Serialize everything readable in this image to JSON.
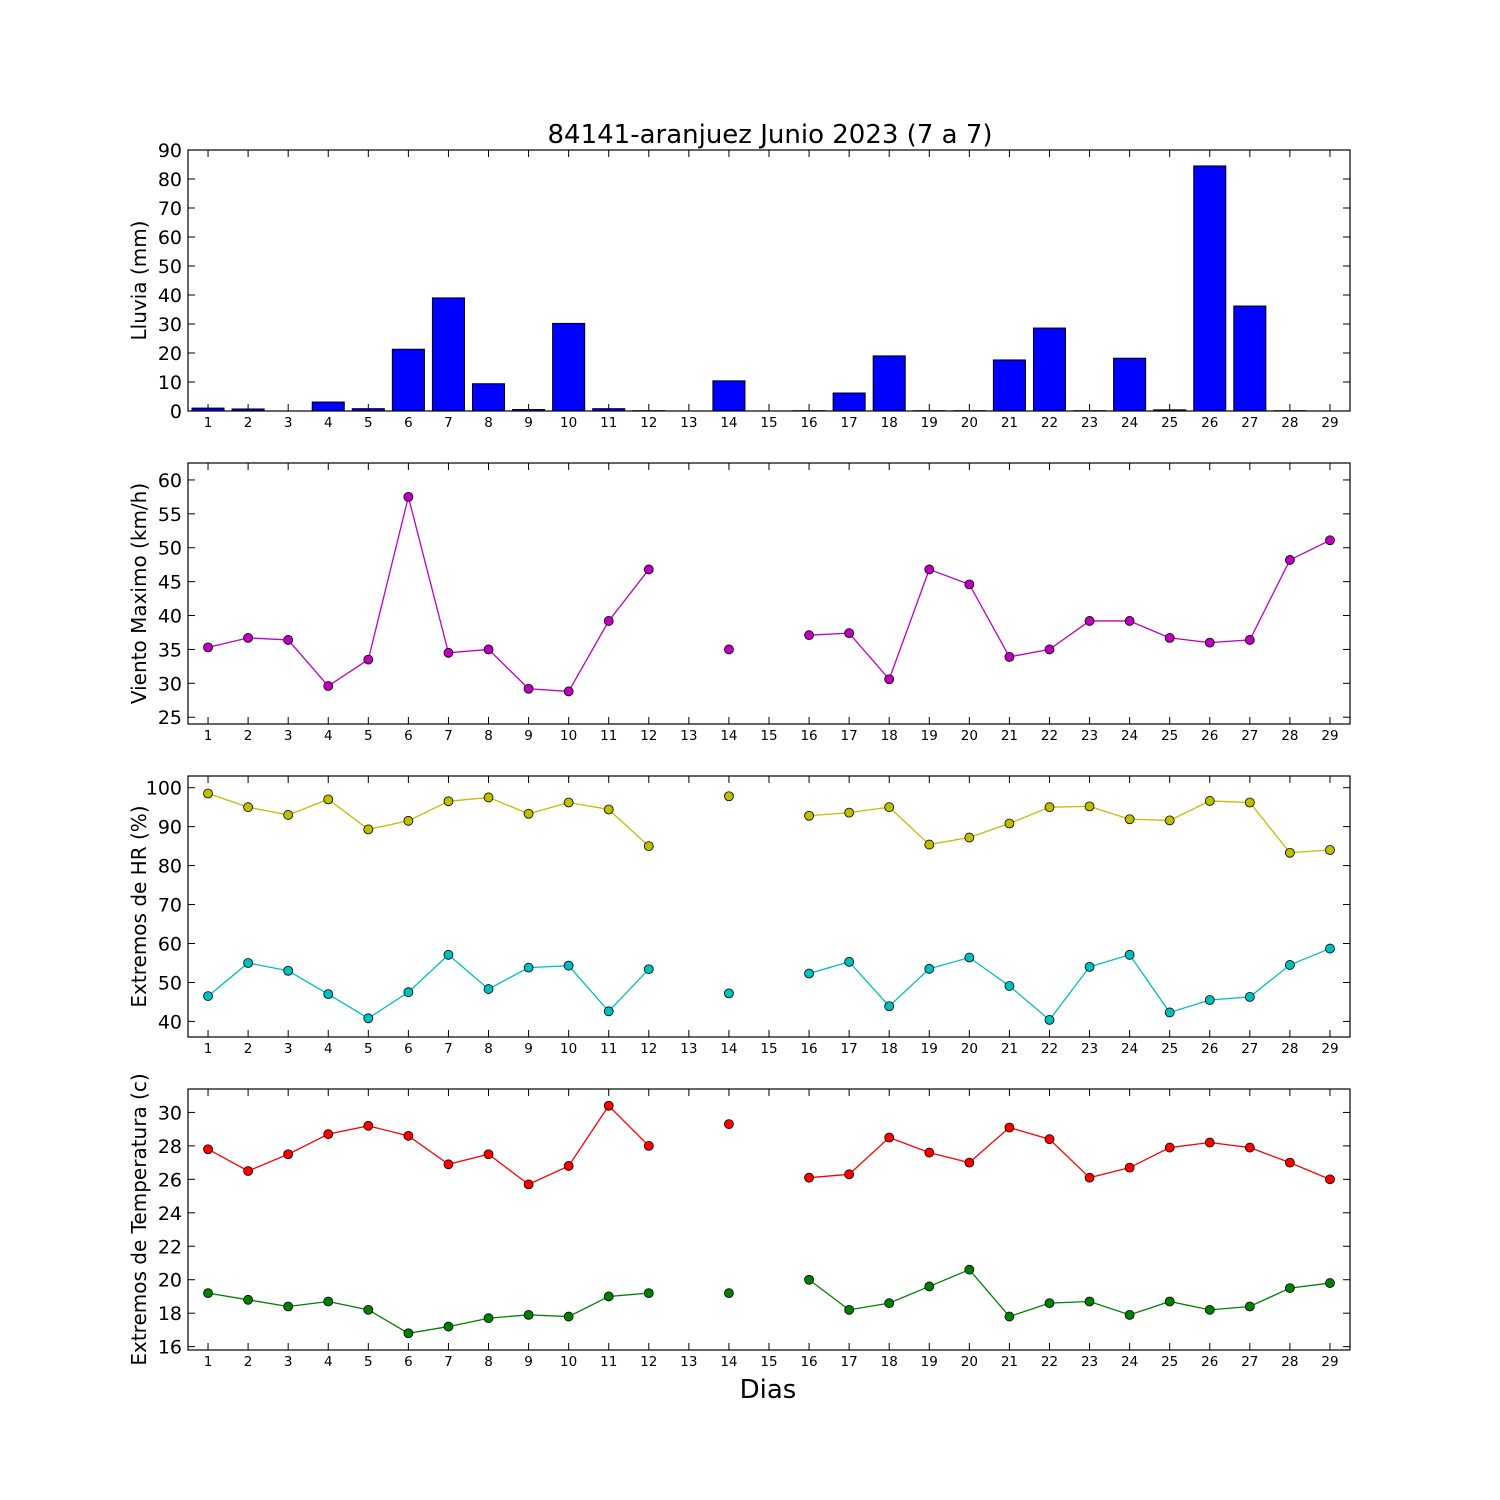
{
  "chart_data": {
    "title": "84141-aranjuez Junio 2023  (7 a 7)",
    "xlabel": "Dias",
    "x_ticks": [
      1,
      2,
      3,
      4,
      5,
      6,
      7,
      8,
      9,
      10,
      11,
      12,
      13,
      14,
      15,
      16,
      17,
      18,
      19,
      20,
      21,
      22,
      23,
      24,
      25,
      26,
      27,
      28,
      29
    ],
    "panels": [
      {
        "type": "bar",
        "ylabel": "Lluvia (mm)",
        "ylim": [
          0,
          90
        ],
        "yticks": [
          0,
          10,
          20,
          30,
          40,
          50,
          60,
          70,
          80,
          90
        ],
        "series": [
          {
            "color": "#0000ff",
            "x": [
              1,
              2,
              3,
              4,
              5,
              6,
              7,
              8,
              9,
              10,
              11,
              12,
              14,
              16,
              17,
              18,
              19,
              20,
              21,
              22,
              23,
              24,
              25,
              26,
              27,
              28
            ],
            "values": [
              1,
              0.7,
              0,
              3.1,
              0.8,
              21.3,
              39,
              9.4,
              0.5,
              30.2,
              0.8,
              0.1,
              10.4,
              0.1,
              6.2,
              19,
              0.1,
              0.1,
              17.6,
              28.6,
              0.1,
              18.2,
              0.4,
              84.5,
              36.2,
              0.1
            ]
          }
        ]
      },
      {
        "type": "line",
        "ylabel": "Viento Maximo (km/h)",
        "ylim": [
          24,
          62.5
        ],
        "yticks": [
          25,
          30,
          35,
          40,
          45,
          50,
          55,
          60
        ],
        "series": [
          {
            "color": "#bf00bf",
            "x": [
              1,
              2,
              3,
              4,
              5,
              6,
              7,
              8,
              9,
              10,
              11,
              12,
              13,
              14,
              15,
              16,
              17,
              18,
              19,
              20,
              21,
              22,
              23,
              24,
              25,
              26,
              27,
              28,
              29
            ],
            "values": [
              35.3,
              36.7,
              36.4,
              29.6,
              33.5,
              57.5,
              34.5,
              35,
              29.2,
              28.8,
              39.2,
              46.8,
              null,
              35,
              null,
              37.1,
              37.4,
              30.6,
              46.8,
              44.6,
              33.9,
              35,
              39.2,
              39.2,
              36.7,
              36,
              36.4,
              48.2,
              51.1
            ]
          }
        ]
      },
      {
        "type": "line",
        "ylabel": "Extremos de HR (%)",
        "ylim": [
          36,
          103
        ],
        "yticks": [
          40,
          50,
          60,
          70,
          80,
          90,
          100
        ],
        "series": [
          {
            "color": "#bfbf00",
            "x": [
              1,
              2,
              3,
              4,
              5,
              6,
              7,
              8,
              9,
              10,
              11,
              12,
              13,
              14,
              15,
              16,
              17,
              18,
              19,
              20,
              21,
              22,
              23,
              24,
              25,
              26,
              27,
              28,
              29
            ],
            "values": [
              98.5,
              95,
              93,
              97,
              89.3,
              91.5,
              96.5,
              97.5,
              93.3,
              96.2,
              94.4,
              85,
              null,
              97.8,
              null,
              92.8,
              93.6,
              95,
              85.4,
              87.2,
              90.8,
              95,
              95.2,
              91.9,
              91.6,
              96.6,
              96.2,
              83.3,
              84
            ]
          },
          {
            "color": "#00bfbf",
            "x": [
              1,
              2,
              3,
              4,
              5,
              6,
              7,
              8,
              9,
              10,
              11,
              12,
              13,
              14,
              15,
              16,
              17,
              18,
              19,
              20,
              21,
              22,
              23,
              24,
              25,
              26,
              27,
              28,
              29
            ],
            "values": [
              46.5,
              55,
              53,
              47,
              40.8,
              47.5,
              57.1,
              48.3,
              53.8,
              54.3,
              42.6,
              53.4,
              null,
              47.2,
              null,
              52.3,
              55.3,
              43.9,
              53.5,
              56.4,
              49.1,
              40.4,
              54,
              57.1,
              42.3,
              45.5,
              46.3,
              54.5,
              58.7
            ]
          }
        ]
      },
      {
        "type": "line",
        "ylabel": "Extremos de Temperatura (c)",
        "ylim": [
          15.8,
          31.4
        ],
        "yticks": [
          16,
          18,
          20,
          22,
          24,
          26,
          28,
          30
        ],
        "series": [
          {
            "color": "#ff0000",
            "x": [
              1,
              2,
              3,
              4,
              5,
              6,
              7,
              8,
              9,
              10,
              11,
              12,
              13,
              14,
              15,
              16,
              17,
              18,
              19,
              20,
              21,
              22,
              23,
              24,
              25,
              26,
              27,
              28,
              29
            ],
            "values": [
              27.8,
              26.5,
              27.5,
              28.7,
              29.2,
              28.6,
              26.9,
              27.5,
              25.7,
              26.8,
              30.4,
              28,
              null,
              29.3,
              null,
              26.1,
              26.3,
              28.5,
              27.6,
              27,
              29.1,
              28.4,
              26.1,
              26.7,
              27.9,
              28.2,
              27.9,
              27,
              26
            ]
          },
          {
            "color": "#008000",
            "x": [
              1,
              2,
              3,
              4,
              5,
              6,
              7,
              8,
              9,
              10,
              11,
              12,
              13,
              14,
              15,
              16,
              17,
              18,
              19,
              20,
              21,
              22,
              23,
              24,
              25,
              26,
              27,
              28,
              29
            ],
            "values": [
              19.2,
              18.8,
              18.4,
              18.7,
              18.2,
              16.8,
              17.2,
              17.7,
              17.9,
              17.8,
              19,
              19.2,
              null,
              19.2,
              null,
              20,
              18.2,
              18.6,
              19.6,
              20.6,
              17.8,
              18.6,
              18.7,
              17.9,
              18.7,
              18.2,
              18.4,
              19.5,
              19.8
            ]
          }
        ]
      }
    ]
  }
}
